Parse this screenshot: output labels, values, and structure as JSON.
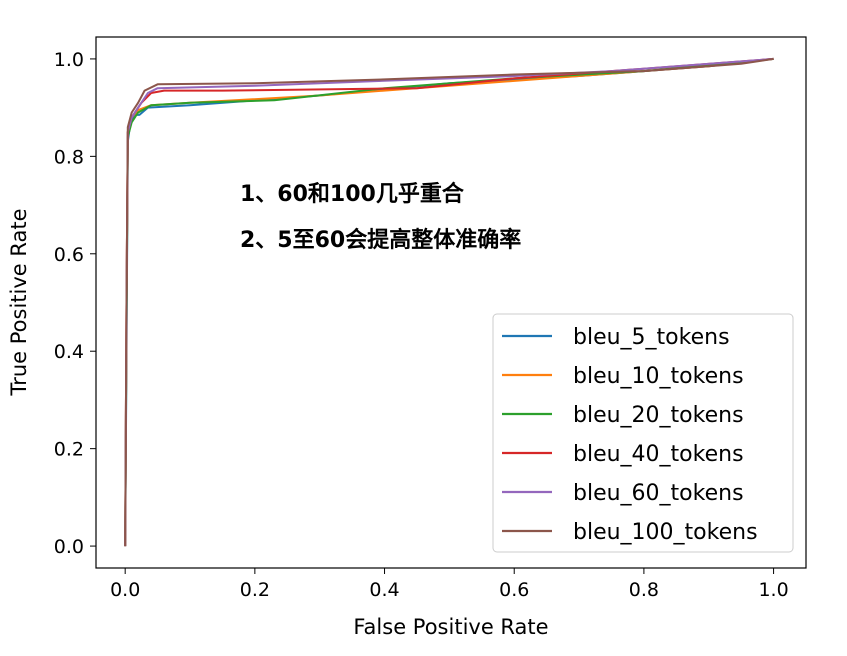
{
  "chart_data": {
    "type": "line",
    "title": "",
    "xlabel": "False Positive Rate",
    "ylabel": "True Positive Rate",
    "xlim": [
      -0.045,
      1.05
    ],
    "ylim": [
      -0.045,
      1.045
    ],
    "xticks": [
      "0.0",
      "0.2",
      "0.4",
      "0.6",
      "0.8",
      "1.0"
    ],
    "yticks": [
      "0.0",
      "0.2",
      "0.4",
      "0.6",
      "0.8",
      "1.0"
    ],
    "grid": false,
    "legend_position": "lower-right",
    "annotations": [
      "1、60和100几乎重合",
      "2、5至60会提高整体准确率"
    ],
    "series": [
      {
        "name": "bleu_5_tokens",
        "color": "#1f77b4",
        "x": [
          0,
          0.002,
          0.004,
          0.008,
          0.014,
          0.022,
          0.035,
          0.1,
          0.3,
          0.5,
          0.7,
          0.9,
          1.0
        ],
        "y": [
          0,
          0.4,
          0.83,
          0.87,
          0.885,
          0.885,
          0.9,
          0.905,
          0.925,
          0.95,
          0.965,
          0.985,
          1.0
        ]
      },
      {
        "name": "bleu_10_tokens",
        "color": "#ff7f0e",
        "x": [
          0,
          0.002,
          0.004,
          0.01,
          0.02,
          0.04,
          0.1,
          0.3,
          0.5,
          0.7,
          0.9,
          1.0
        ],
        "y": [
          0,
          0.5,
          0.85,
          0.88,
          0.895,
          0.905,
          0.91,
          0.925,
          0.945,
          0.965,
          0.985,
          1.0
        ]
      },
      {
        "name": "bleu_20_tokens",
        "color": "#2ca02c",
        "x": [
          0,
          0.002,
          0.004,
          0.01,
          0.02,
          0.04,
          0.1,
          0.23,
          0.4,
          0.6,
          0.8,
          1.0
        ],
        "y": [
          0,
          0.45,
          0.84,
          0.87,
          0.89,
          0.905,
          0.91,
          0.915,
          0.94,
          0.96,
          0.975,
          1.0
        ]
      },
      {
        "name": "bleu_40_tokens",
        "color": "#d62728",
        "x": [
          0,
          0.002,
          0.004,
          0.01,
          0.025,
          0.04,
          0.06,
          0.15,
          0.45,
          0.6,
          0.8,
          1.0
        ],
        "y": [
          0,
          0.5,
          0.85,
          0.88,
          0.91,
          0.93,
          0.935,
          0.935,
          0.94,
          0.96,
          0.98,
          1.0
        ]
      },
      {
        "name": "bleu_60_tokens",
        "color": "#9467bd",
        "x": [
          0,
          0.002,
          0.004,
          0.01,
          0.02,
          0.035,
          0.05,
          0.2,
          0.4,
          0.6,
          0.75,
          0.85,
          1.0
        ],
        "y": [
          0,
          0.5,
          0.85,
          0.88,
          0.9,
          0.93,
          0.94,
          0.945,
          0.955,
          0.965,
          0.975,
          0.985,
          1.0
        ]
      },
      {
        "name": "bleu_100_tokens",
        "color": "#8c564b",
        "x": [
          0,
          0.002,
          0.004,
          0.01,
          0.02,
          0.03,
          0.05,
          0.2,
          0.4,
          0.6,
          0.8,
          0.95,
          1.0
        ],
        "y": [
          0,
          0.5,
          0.86,
          0.89,
          0.91,
          0.935,
          0.948,
          0.95,
          0.958,
          0.968,
          0.975,
          0.99,
          1.0
        ]
      }
    ]
  }
}
